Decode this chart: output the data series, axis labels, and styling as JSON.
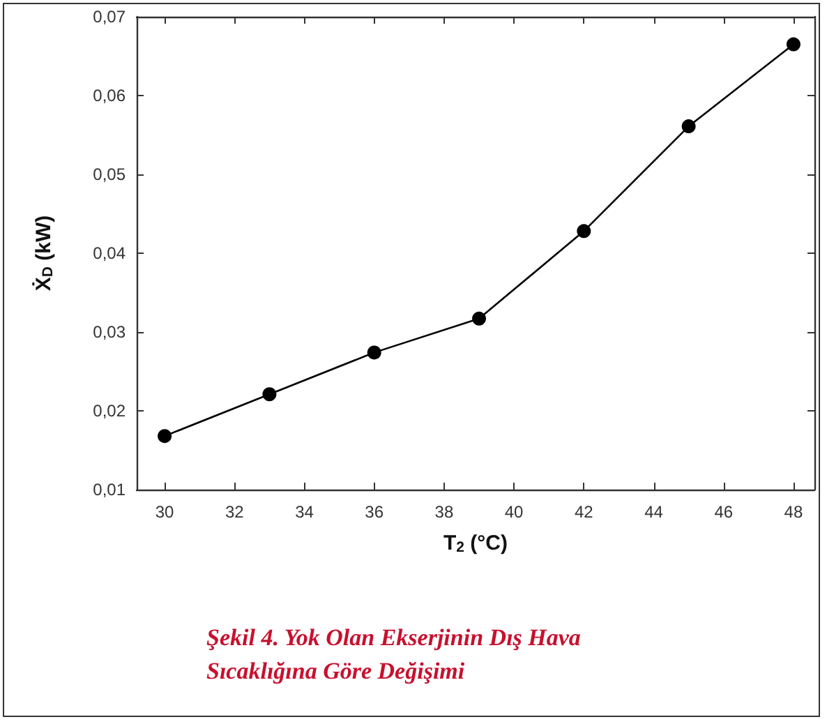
{
  "chart_data": {
    "type": "line",
    "title": "Şekil 4. Yok Olan Ekserjinin Dış Hava Sıcaklığına Göre Değişimi",
    "xlabel": "T$_{2}$ (°C)",
    "ylabel": "Ẋ$_{D}$ (kW)",
    "x": [
      30,
      33,
      36,
      39,
      42,
      45,
      48
    ],
    "series": [
      {
        "color": "#000000",
        "values": [
          0.0168,
          0.0221,
          0.0274,
          0.0317,
          0.0428,
          0.0561,
          0.0665
        ]
      }
    ],
    "xlim": [
      29.2,
      48.6
    ],
    "xticks": [
      30,
      32,
      34,
      36,
      38,
      40,
      42,
      44,
      46,
      48
    ],
    "ylim": [
      0.01,
      0.07
    ],
    "yticks": [
      {
        "value": 0.01,
        "label": "0,01"
      },
      {
        "value": 0.02,
        "label": "0,02"
      },
      {
        "value": 0.03,
        "label": "0,03"
      },
      {
        "value": 0.04,
        "label": "0,04"
      },
      {
        "value": 0.05,
        "label": "0,05"
      },
      {
        "value": 0.06,
        "label": "0,06"
      },
      {
        "value": 0.07,
        "label": "0,07"
      }
    ],
    "grid": false,
    "marker": "circle",
    "line_style": "solid"
  }
}
